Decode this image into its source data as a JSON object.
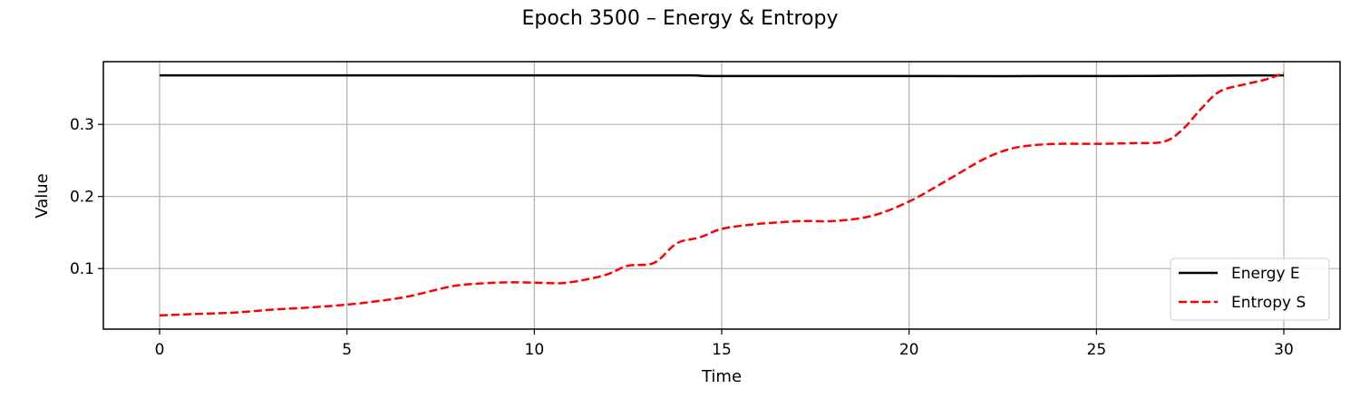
{
  "chart_data": {
    "type": "line",
    "title": "Epoch 3500 – Energy & Entropy",
    "xlabel": "Time",
    "ylabel": "Value",
    "xlim": [
      -1.5,
      31.5
    ],
    "ylim": [
      0.016,
      0.387
    ],
    "xticks": [
      0,
      5,
      10,
      15,
      20,
      25,
      30
    ],
    "yticks": [
      0.1,
      0.2,
      0.3
    ],
    "ytick_labels": [
      "0.1",
      "0.2",
      "0.3"
    ],
    "grid": true,
    "legend_position": "lower-right",
    "series": [
      {
        "name": "Energy E",
        "color": "#000000",
        "style": "solid",
        "x": [
          0,
          5,
          10,
          14,
          15,
          20,
          25,
          30
        ],
        "y": [
          0.368,
          0.368,
          0.368,
          0.368,
          0.367,
          0.367,
          0.367,
          0.368
        ]
      },
      {
        "name": "Entropy S",
        "color": "#ff0000",
        "style": "dashed",
        "x": [
          0,
          1,
          2,
          3,
          4,
          5,
          6,
          6.7,
          7.5,
          8,
          8.8,
          9.5,
          10.3,
          10.8,
          11.5,
          12,
          12.5,
          13.2,
          13.8,
          14.4,
          15,
          15.8,
          16.5,
          17.2,
          18,
          19,
          20,
          21,
          22,
          22.7,
          23.3,
          24,
          25,
          26,
          26.8,
          27.3,
          27.8,
          28.3,
          29,
          29.5,
          30
        ],
        "y": [
          0.035,
          0.037,
          0.039,
          0.043,
          0.046,
          0.05,
          0.056,
          0.062,
          0.072,
          0.077,
          0.08,
          0.081,
          0.08,
          0.08,
          0.086,
          0.093,
          0.104,
          0.108,
          0.135,
          0.143,
          0.155,
          0.161,
          0.164,
          0.166,
          0.166,
          0.173,
          0.193,
          0.222,
          0.252,
          0.266,
          0.271,
          0.273,
          0.273,
          0.274,
          0.276,
          0.293,
          0.322,
          0.346,
          0.356,
          0.362,
          0.371
        ]
      }
    ]
  }
}
